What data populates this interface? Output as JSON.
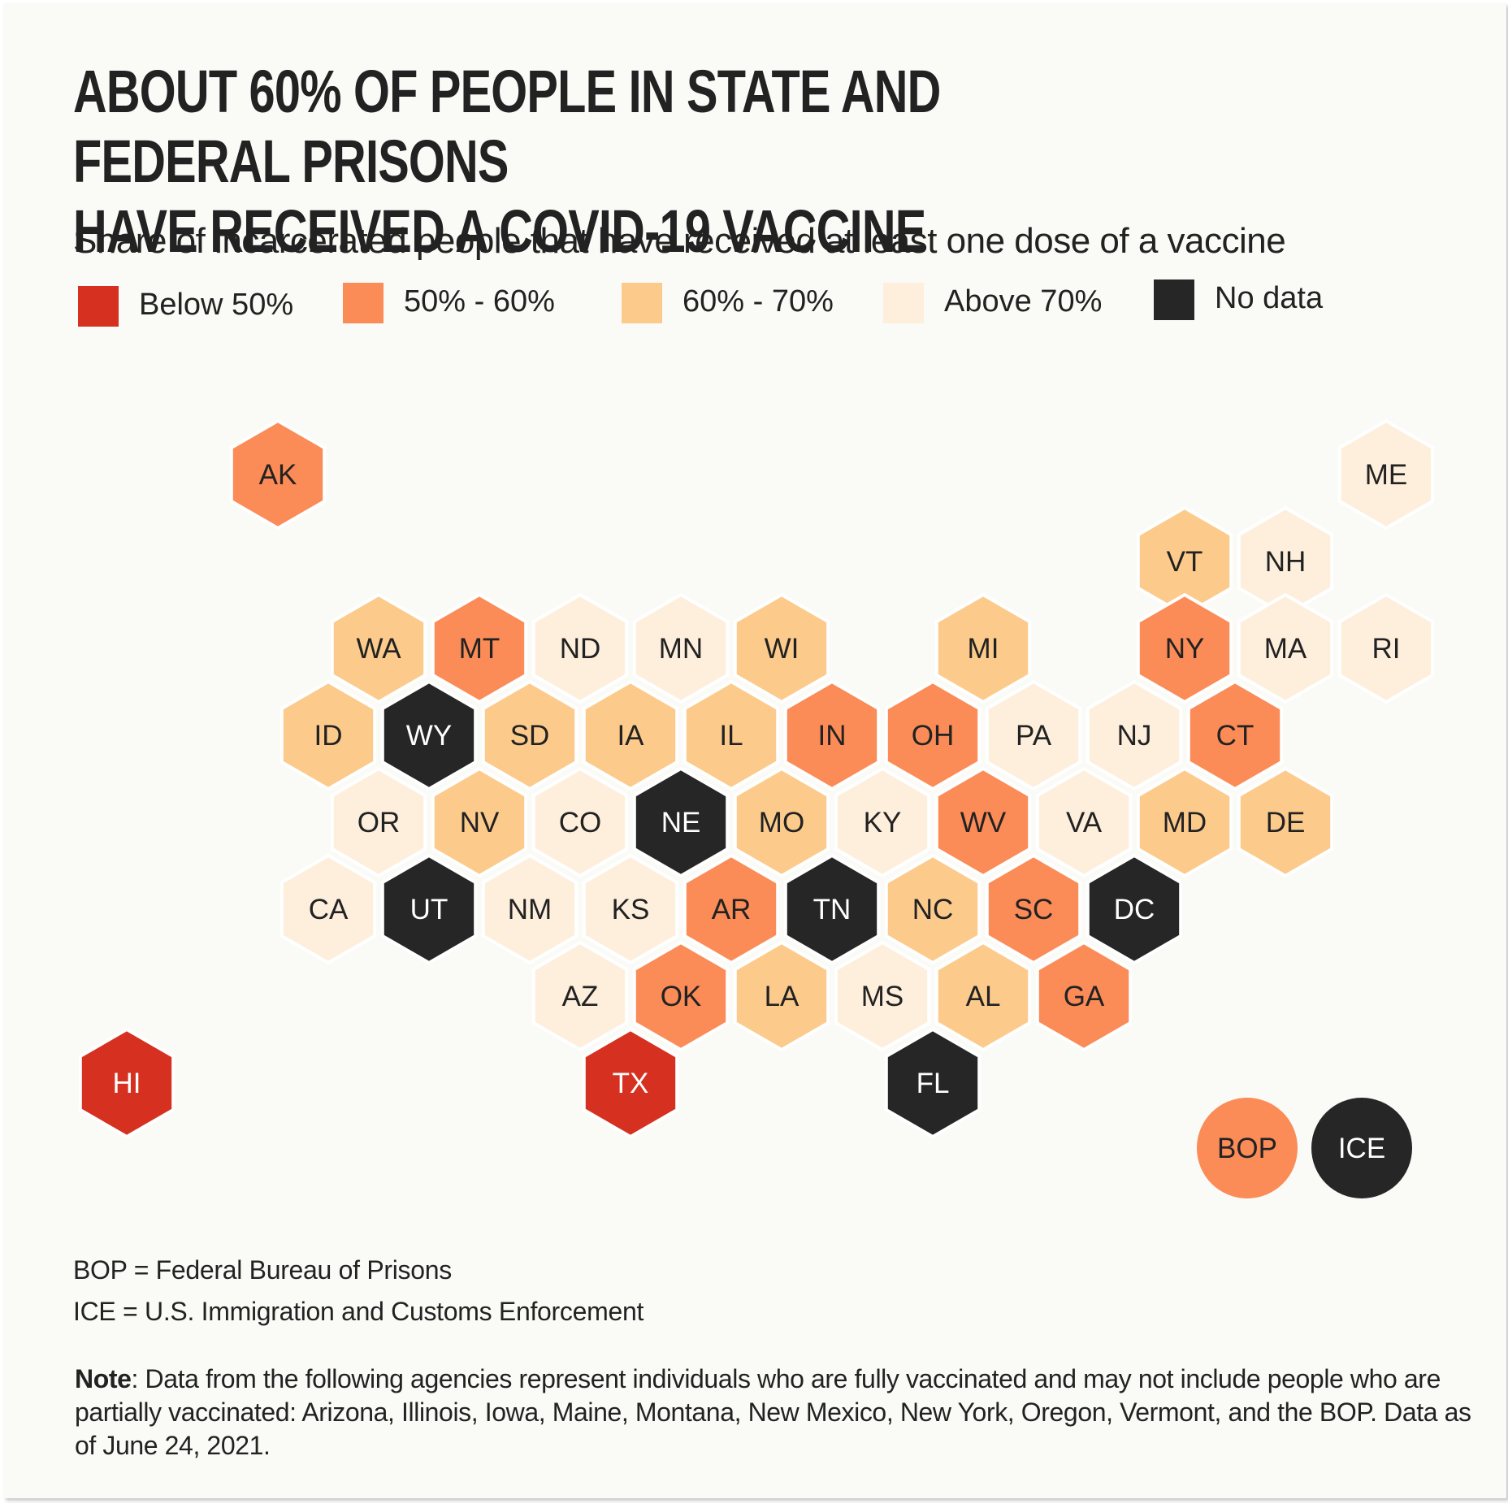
{
  "title_line1": "ABOUT 60% OF PEOPLE IN STATE AND FEDERAL PRISONS",
  "title_line2": "HAVE RECEIVED A COVID-19 VACCINE",
  "subtitle": "Share of incarcerated people that have received at least one dose of a vaccine",
  "legend": [
    {
      "key": "below50",
      "label": "Below 50%",
      "color": "#d63120"
    },
    {
      "key": "50to60",
      "label": "50% - 60%",
      "color": "#fb8b57"
    },
    {
      "key": "60to70",
      "label": "60% - 70%",
      "color": "#fccb8c"
    },
    {
      "key": "above70",
      "label": "Above 70%",
      "color": "#fdefdc"
    },
    {
      "key": "nodata",
      "label": "No data",
      "color": "#262626"
    }
  ],
  "chart_data": {
    "type": "hex tile map",
    "title": "ABOUT 60% OF PEOPLE IN STATE AND FEDERAL PRISONS HAVE RECEIVED A COVID-19 VACCINE",
    "subtitle": "Share of incarcerated people that have received at least one dose of a vaccine",
    "states": [
      {
        "abbr": "AK",
        "category": "50to60",
        "row": 0,
        "col": 1,
        "offset": true
      },
      {
        "abbr": "ME",
        "category": "above70",
        "row": 0,
        "col": 12,
        "offset": true
      },
      {
        "abbr": "VT",
        "category": "60to70",
        "row": 1,
        "col": 10,
        "offset": true
      },
      {
        "abbr": "NH",
        "category": "above70",
        "row": 1,
        "col": 11,
        "offset": true
      },
      {
        "abbr": "WA",
        "category": "60to70",
        "row": 2,
        "col": 2,
        "offset": true
      },
      {
        "abbr": "MT",
        "category": "50to60",
        "row": 2,
        "col": 3,
        "offset": true
      },
      {
        "abbr": "ND",
        "category": "above70",
        "row": 2,
        "col": 4,
        "offset": true
      },
      {
        "abbr": "MN",
        "category": "above70",
        "row": 2,
        "col": 5,
        "offset": true
      },
      {
        "abbr": "WI",
        "category": "60to70",
        "row": 2,
        "col": 6,
        "offset": true
      },
      {
        "abbr": "MI",
        "category": "60to70",
        "row": 2,
        "col": 8,
        "offset": true
      },
      {
        "abbr": "NY",
        "category": "50to60",
        "row": 2,
        "col": 10,
        "offset": true
      },
      {
        "abbr": "MA",
        "category": "above70",
        "row": 2,
        "col": 11,
        "offset": true
      },
      {
        "abbr": "RI",
        "category": "above70",
        "row": 2,
        "col": 12,
        "offset": true
      },
      {
        "abbr": "ID",
        "category": "60to70",
        "row": 3,
        "col": 2,
        "offset": false
      },
      {
        "abbr": "WY",
        "category": "nodata",
        "row": 3,
        "col": 3,
        "offset": false
      },
      {
        "abbr": "SD",
        "category": "60to70",
        "row": 3,
        "col": 4,
        "offset": false
      },
      {
        "abbr": "IA",
        "category": "60to70",
        "row": 3,
        "col": 5,
        "offset": false
      },
      {
        "abbr": "IL",
        "category": "60to70",
        "row": 3,
        "col": 6,
        "offset": false
      },
      {
        "abbr": "IN",
        "category": "50to60",
        "row": 3,
        "col": 7,
        "offset": false
      },
      {
        "abbr": "OH",
        "category": "50to60",
        "row": 3,
        "col": 8,
        "offset": false
      },
      {
        "abbr": "PA",
        "category": "above70",
        "row": 3,
        "col": 9,
        "offset": false
      },
      {
        "abbr": "NJ",
        "category": "above70",
        "row": 3,
        "col": 10,
        "offset": false
      },
      {
        "abbr": "CT",
        "category": "50to60",
        "row": 3,
        "col": 11,
        "offset": false
      },
      {
        "abbr": "OR",
        "category": "above70",
        "row": 4,
        "col": 2,
        "offset": true
      },
      {
        "abbr": "NV",
        "category": "60to70",
        "row": 4,
        "col": 3,
        "offset": true
      },
      {
        "abbr": "CO",
        "category": "above70",
        "row": 4,
        "col": 4,
        "offset": true
      },
      {
        "abbr": "NE",
        "category": "nodata",
        "row": 4,
        "col": 5,
        "offset": true
      },
      {
        "abbr": "MO",
        "category": "60to70",
        "row": 4,
        "col": 6,
        "offset": true
      },
      {
        "abbr": "KY",
        "category": "above70",
        "row": 4,
        "col": 7,
        "offset": true
      },
      {
        "abbr": "WV",
        "category": "50to60",
        "row": 4,
        "col": 8,
        "offset": true
      },
      {
        "abbr": "VA",
        "category": "above70",
        "row": 4,
        "col": 9,
        "offset": true
      },
      {
        "abbr": "MD",
        "category": "60to70",
        "row": 4,
        "col": 10,
        "offset": true
      },
      {
        "abbr": "DE",
        "category": "60to70",
        "row": 4,
        "col": 11,
        "offset": true
      },
      {
        "abbr": "CA",
        "category": "above70",
        "row": 5,
        "col": 2,
        "offset": false
      },
      {
        "abbr": "UT",
        "category": "nodata",
        "row": 5,
        "col": 3,
        "offset": false
      },
      {
        "abbr": "NM",
        "category": "above70",
        "row": 5,
        "col": 4,
        "offset": false
      },
      {
        "abbr": "KS",
        "category": "above70",
        "row": 5,
        "col": 5,
        "offset": false
      },
      {
        "abbr": "AR",
        "category": "50to60",
        "row": 5,
        "col": 6,
        "offset": false
      },
      {
        "abbr": "TN",
        "category": "nodata",
        "row": 5,
        "col": 7,
        "offset": false
      },
      {
        "abbr": "NC",
        "category": "60to70",
        "row": 5,
        "col": 8,
        "offset": false
      },
      {
        "abbr": "SC",
        "category": "50to60",
        "row": 5,
        "col": 9,
        "offset": false
      },
      {
        "abbr": "DC",
        "category": "nodata",
        "row": 5,
        "col": 10,
        "offset": false
      },
      {
        "abbr": "AZ",
        "category": "above70",
        "row": 6,
        "col": 4,
        "offset": true
      },
      {
        "abbr": "OK",
        "category": "50to60",
        "row": 6,
        "col": 5,
        "offset": true
      },
      {
        "abbr": "LA",
        "category": "60to70",
        "row": 6,
        "col": 6,
        "offset": true
      },
      {
        "abbr": "MS",
        "category": "above70",
        "row": 6,
        "col": 7,
        "offset": true
      },
      {
        "abbr": "AL",
        "category": "60to70",
        "row": 6,
        "col": 8,
        "offset": true
      },
      {
        "abbr": "GA",
        "category": "50to60",
        "row": 6,
        "col": 9,
        "offset": true
      },
      {
        "abbr": "HI",
        "category": "below50",
        "row": 7,
        "col": 0,
        "offset": false
      },
      {
        "abbr": "TX",
        "category": "below50",
        "row": 7,
        "col": 5,
        "offset": false
      },
      {
        "abbr": "FL",
        "category": "nodata",
        "row": 7,
        "col": 8,
        "offset": false
      }
    ],
    "agencies": [
      {
        "abbr": "BOP",
        "category": "50to60"
      },
      {
        "abbr": "ICE",
        "category": "nodata"
      }
    ]
  },
  "footnotes": [
    "BOP = Federal Bureau of Prisons",
    "ICE = U.S. Immigration and Customs Enforcement"
  ],
  "note_label": "Note",
  "note_text": ": Data from the following agencies represent individuals who are fully vaccinated and may not include people who are partially vaccinated: Arizona, Illinois, Iowa, Maine, Montana, New Mexico, New York, Oregon, Vermont, and the BOP.  Data as of June 24, 2021."
}
